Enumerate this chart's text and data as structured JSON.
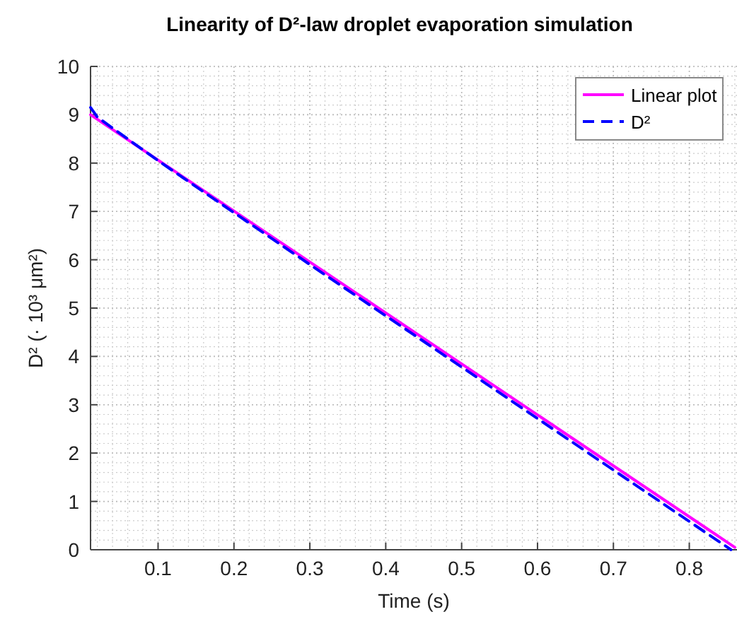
{
  "chart_data": {
    "type": "line",
    "title": "Linearity of D²-law droplet evaporation simulation",
    "xlabel": "Time (s)",
    "ylabel": "D² (· 10³ μm²)",
    "xlim": [
      0.011,
      0.861
    ],
    "xticks": [
      0.1,
      0.2,
      0.3,
      0.4,
      0.5,
      0.6,
      0.7,
      0.8
    ],
    "ylim": [
      0,
      10
    ],
    "yticks": [
      0,
      1,
      2,
      3,
      4,
      5,
      6,
      7,
      8,
      9,
      10
    ],
    "grid": true,
    "legend": "top right",
    "series": [
      {
        "name": "Linear plot",
        "color": "#ff00ff",
        "line_style": "solid",
        "x": [
          0.011,
          0.86
        ],
        "values": [
          9.0,
          0.05
        ]
      },
      {
        "name": "D²",
        "color": "#0000ff",
        "line_style": "dashed",
        "x": [
          0.011,
          0.02,
          0.1,
          0.3,
          0.5,
          0.7,
          0.855
        ],
        "values": [
          9.15,
          8.95,
          8.05,
          5.9,
          3.78,
          1.65,
          0.0
        ]
      }
    ]
  }
}
